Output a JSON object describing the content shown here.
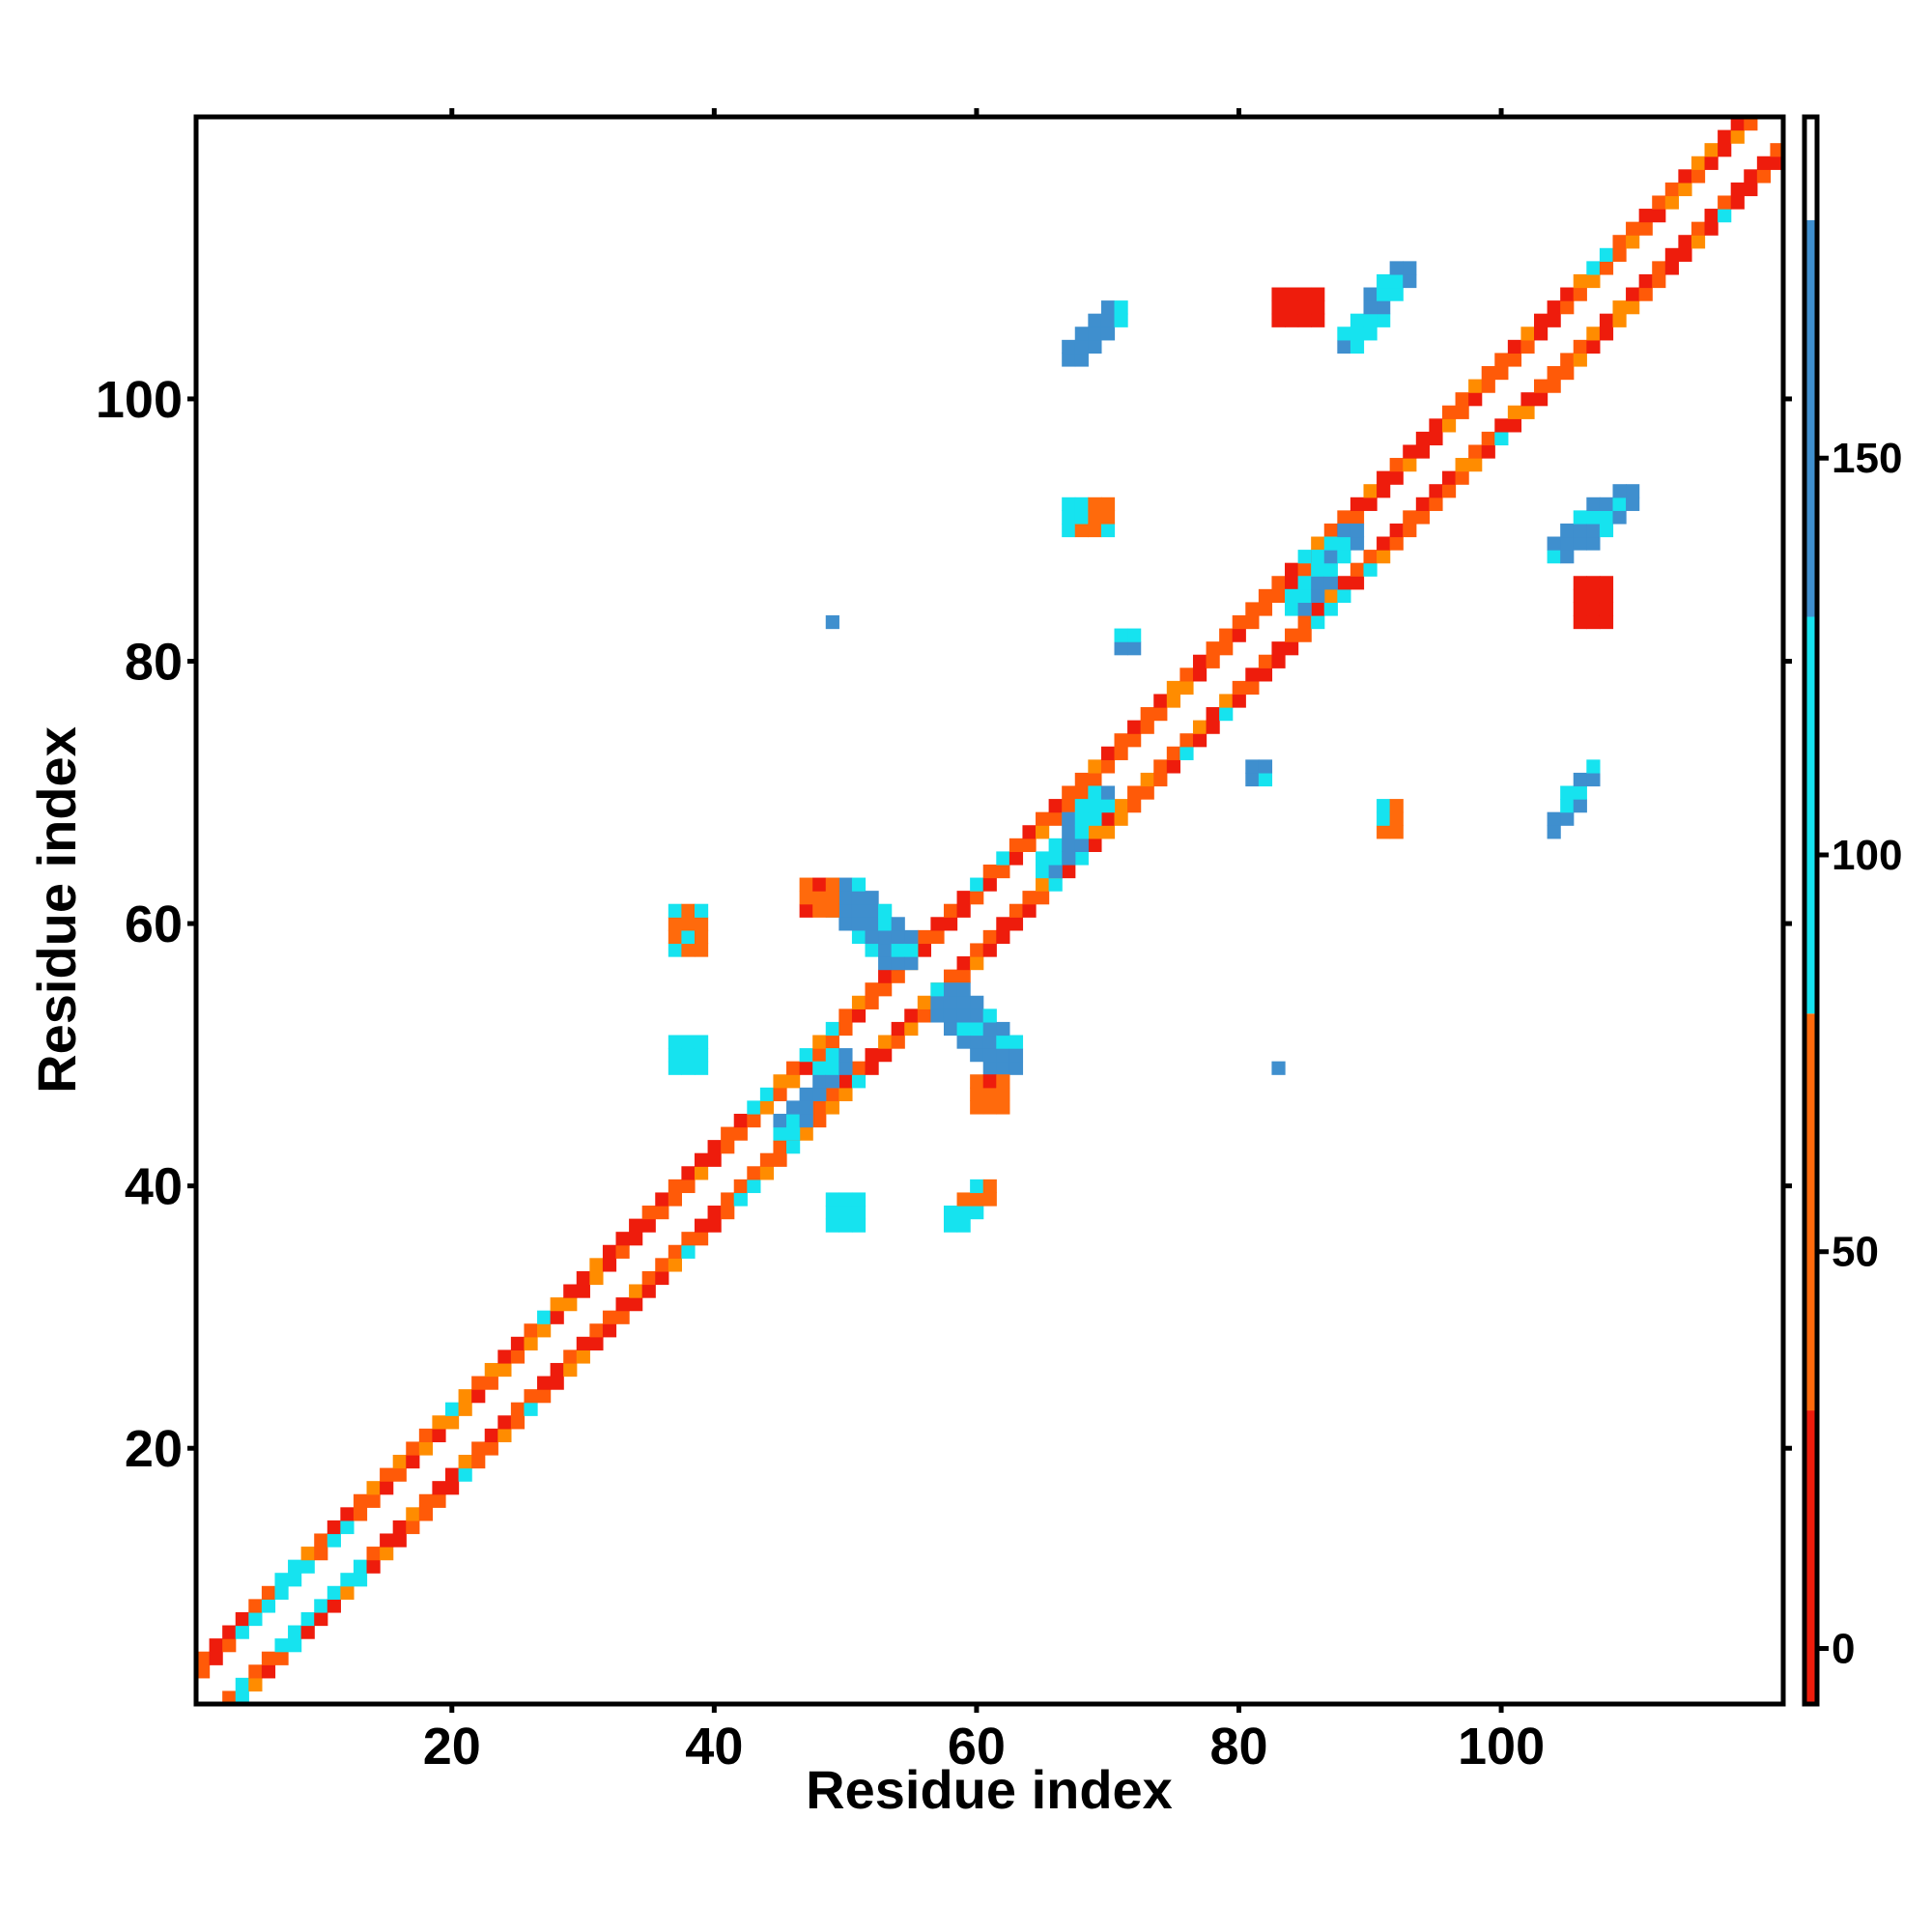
{
  "chart_data": {
    "type": "heatmap",
    "title": "",
    "xlabel": "Residue index",
    "ylabel": "Residue index",
    "xlim": [
      0.5,
      121.5
    ],
    "ylim": [
      0.5,
      121.5
    ],
    "x_ticks": [
      20,
      40,
      60,
      80,
      100
    ],
    "y_ticks": [
      20,
      40,
      60,
      80,
      100
    ],
    "grid": false,
    "colorbar": {
      "range": [
        -7,
        193
      ],
      "ticks": [
        0,
        50,
        100,
        150
      ],
      "bands": [
        {
          "from": -7,
          "to": 30,
          "color": "#ee1c0c"
        },
        {
          "from": 30,
          "to": 80,
          "color": "#ff6a0c"
        },
        {
          "from": 80,
          "to": 130,
          "color": "#16e3ef"
        },
        {
          "from": 130,
          "to": 180,
          "color": "#3f8fce"
        },
        {
          "from": 180,
          "to": 193,
          "color": "#ffffff"
        }
      ]
    },
    "palette": {
      "red": "#ee1c0c",
      "orange_red": "#ff5a08",
      "orange": "#ff8c00",
      "cyan": "#16e3ef",
      "sky": "#22c4e4",
      "blue": "#3f8fce"
    },
    "diagonal_band": {
      "residues": [
        1,
        121
      ],
      "offsets": [
        -3,
        -2,
        2,
        3
      ]
    },
    "clusters": [
      {
        "name": "antiparallel-hairpin",
        "residue_i": [
          49,
          55
        ],
        "residue_j": [
          57,
          63
        ],
        "value_range": [
          110,
          175
        ]
      },
      {
        "name": "antiparallel-hairpin",
        "residue_i": [
          57,
          63
        ],
        "residue_j": [
          49,
          55
        ],
        "value_range": [
          110,
          175
        ]
      },
      {
        "name": "sheet-pair",
        "residue_i": [
          88,
          93
        ],
        "residue_j": [
          104,
          110
        ],
        "value_range": [
          110,
          175
        ]
      },
      {
        "name": "sheet-pair",
        "residue_i": [
          104,
          110
        ],
        "residue_j": [
          88,
          93
        ],
        "value_range": [
          110,
          175
        ]
      },
      {
        "name": "sheet-pair",
        "residue_i": [
          67,
          71
        ],
        "residue_j": [
          103,
          107
        ],
        "value_range": [
          110,
          175
        ]
      },
      {
        "name": "sheet-pair",
        "residue_i": [
          104,
          107
        ],
        "residue_j": [
          67,
          72
        ],
        "value_range": [
          110,
          175
        ]
      },
      {
        "name": "sheet-pair",
        "residue_i": [
          45,
          50
        ],
        "residue_j": [
          44,
          50
        ],
        "value_range": [
          100,
          170
        ]
      },
      {
        "name": "sheet-pair",
        "residue_i": [
          65,
          70
        ],
        "residue_j": [
          64,
          70
        ],
        "value_range": [
          100,
          170
        ]
      },
      {
        "name": "sheet-pair",
        "residue_i": [
          84,
          89
        ],
        "residue_j": [
          84,
          90
        ],
        "value_range": [
          100,
          170
        ]
      },
      {
        "name": "contact",
        "residue_i": [
          37,
          39
        ],
        "residue_j": [
          49,
          51
        ],
        "value_range": [
          100,
          130
        ]
      },
      {
        "name": "contact",
        "residue_i": [
          49,
          51
        ],
        "residue_j": [
          37,
          39
        ],
        "value_range": [
          100,
          130
        ]
      },
      {
        "name": "contact",
        "residue_i": [
          37,
          39
        ],
        "residue_j": [
          58,
          61
        ],
        "value_range": [
          40,
          110
        ]
      },
      {
        "name": "contact",
        "residue_i": [
          58,
          61
        ],
        "residue_j": [
          37,
          40
        ],
        "value_range": [
          40,
          110
        ]
      },
      {
        "name": "contact",
        "residue_i": [
          47,
          49
        ],
        "residue_j": [
          61,
          63
        ],
        "value_range": [
          20,
          70
        ]
      },
      {
        "name": "contact",
        "residue_i": [
          60,
          62
        ],
        "residue_j": [
          46,
          48
        ],
        "value_range": [
          20,
          70
        ]
      },
      {
        "name": "contact",
        "residue_i": [
          67,
          70
        ],
        "residue_j": [
          90,
          92
        ],
        "value_range": [
          30,
          110
        ]
      },
      {
        "name": "contact",
        "residue_i": [
          91,
          92
        ],
        "residue_j": [
          67,
          69
        ],
        "value_range": [
          30,
          110
        ]
      },
      {
        "name": "contact",
        "residue_i": [
          83,
          86
        ],
        "residue_j": [
          106,
          108
        ],
        "value_range": [
          0,
          30
        ]
      },
      {
        "name": "contact",
        "residue_i": [
          106,
          108
        ],
        "residue_j": [
          83,
          86
        ],
        "value_range": [
          0,
          30
        ]
      },
      {
        "name": "contact",
        "residue_i": [
          71,
          72
        ],
        "residue_j": [
          81,
          82
        ],
        "value_range": [
          120,
          140
        ]
      },
      {
        "name": "contact",
        "residue_i": [
          81,
          82
        ],
        "residue_j": [
          71,
          72
        ],
        "value_range": [
          120,
          140
        ]
      },
      {
        "name": "contact",
        "residue_i": [
          49,
          49
        ],
        "residue_j": [
          83,
          83
        ],
        "value_range": [
          140,
          150
        ]
      },
      {
        "name": "contact",
        "residue_i": [
          83,
          83
        ],
        "residue_j": [
          49,
          49
        ],
        "value_range": [
          140,
          150
        ]
      }
    ]
  }
}
